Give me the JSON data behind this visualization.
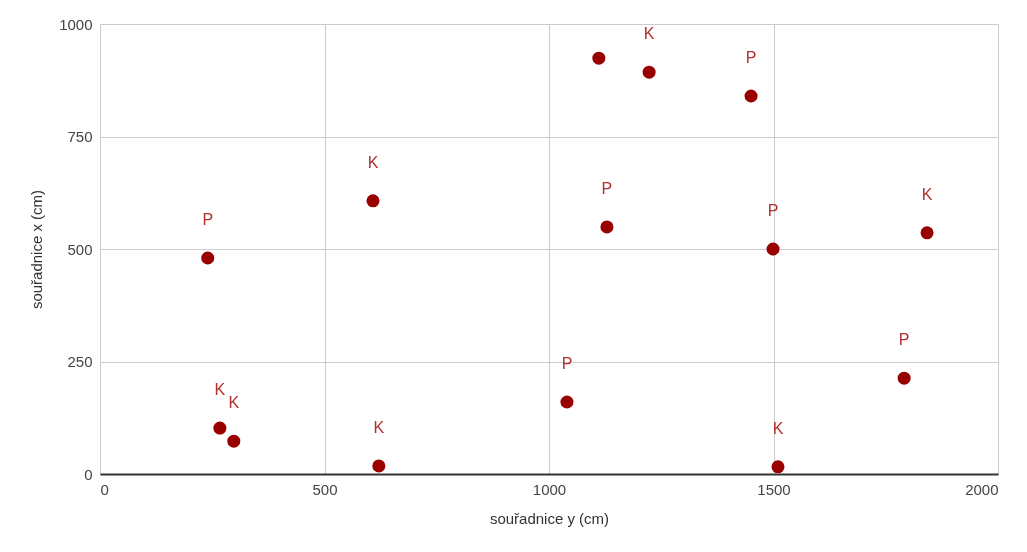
{
  "chart_data": {
    "type": "scatter",
    "xlabel": "souřadnice y (cm)",
    "ylabel": "souřadnice x (cm)",
    "x": [
      240,
      267,
      298,
      608,
      621,
      1040,
      1111,
      1129,
      1223,
      1450,
      1499,
      1510,
      1791,
      1842
    ],
    "series": [
      {
        "color": "#990000",
        "values": [
          480,
          102,
          73,
          607,
          18,
          160,
          924,
          549,
          893,
          840,
          500,
          16,
          213,
          536
        ],
        "value_labels": [
          "P",
          "K",
          "K",
          "K",
          "K",
          "P",
          null,
          "P",
          "K",
          "P",
          "P",
          "K",
          "P",
          "K"
        ]
      }
    ],
    "xlim": [
      0,
      2000
    ],
    "xticks": [
      0,
      500,
      1000,
      1500,
      2000
    ],
    "ylim": [
      0,
      1000
    ],
    "yticks": [
      0,
      250,
      500,
      750,
      1000
    ],
    "grid": true,
    "marker": "circle"
  }
}
